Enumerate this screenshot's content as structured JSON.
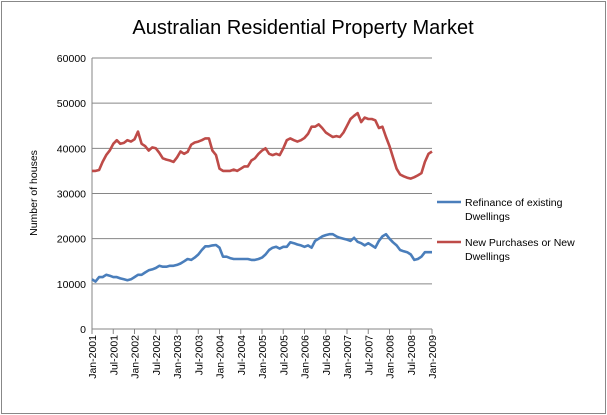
{
  "chart_data": {
    "type": "line",
    "title": "Australian Residential Property Market",
    "xlabel": "",
    "ylabel": "Number of houses",
    "ylim": [
      0,
      60000
    ],
    "yticks": [
      "0",
      "10000",
      "20000",
      "30000",
      "40000",
      "50000",
      "60000"
    ],
    "xtick_labels": [
      "Jan-2001",
      "Jul-2001",
      "Jan-2002",
      "Jul-2002",
      "Jan-2003",
      "Jul-2003",
      "Jan-2004",
      "Jul-2004",
      "Jan-2005",
      "Jul-2005",
      "Jan-2006",
      "Jul-2006",
      "Jan-2007",
      "Jul-2007",
      "Jan-2008",
      "Jul-2008",
      "Jan-2009"
    ],
    "x_start": "Jan-2001",
    "x_end": "Jan-2009",
    "x_frequency": "monthly",
    "grid": "horizontal",
    "legend_position": "right",
    "series": [
      {
        "name": "Refinance of existing Dwellings",
        "color": "#4a7ebb",
        "values": [
          11000,
          10500,
          11500,
          11500,
          12000,
          11800,
          11500,
          11500,
          11200,
          11000,
          10800,
          11000,
          11500,
          12000,
          12000,
          12500,
          13000,
          13200,
          13500,
          14000,
          13800,
          13800,
          14000,
          14000,
          14200,
          14500,
          15000,
          15500,
          15300,
          15800,
          16500,
          17500,
          18300,
          18300,
          18500,
          18600,
          18000,
          16000,
          16000,
          15700,
          15500,
          15500,
          15500,
          15500,
          15500,
          15300,
          15300,
          15500,
          15800,
          16500,
          17500,
          18000,
          18200,
          17800,
          18200,
          18200,
          19200,
          19000,
          18700,
          18500,
          18200,
          18500,
          18000,
          19500,
          20000,
          20500,
          20800,
          21000,
          21000,
          20500,
          20200,
          20000,
          19800,
          19500,
          20200,
          19300,
          19000,
          18500,
          19000,
          18500,
          18000,
          19500,
          20500,
          21000,
          20000,
          19200,
          18500,
          17500,
          17200,
          17000,
          16500,
          15300,
          15500,
          16000,
          17000,
          17000,
          17000
        ]
      },
      {
        "name": "New Purchases or New Dwellings",
        "color": "#be4b48",
        "values": [
          35000,
          35000,
          35200,
          37000,
          38500,
          39500,
          41000,
          41800,
          41000,
          41200,
          41800,
          41500,
          42000,
          43700,
          41000,
          40500,
          39500,
          40200,
          40000,
          39000,
          37800,
          37500,
          37300,
          37000,
          38000,
          39300,
          38800,
          39200,
          40800,
          41300,
          41500,
          41800,
          42200,
          42200,
          39500,
          38500,
          35500,
          35000,
          35000,
          35000,
          35300,
          35000,
          35500,
          36000,
          36000,
          37300,
          37800,
          38800,
          39500,
          40000,
          38800,
          38500,
          38800,
          38500,
          40000,
          41800,
          42200,
          41800,
          41500,
          41800,
          42300,
          43200,
          44800,
          44800,
          45300,
          44500,
          43500,
          43000,
          42500,
          42700,
          42500,
          43500,
          45000,
          46500,
          47200,
          47800,
          45800,
          46800,
          46500,
          46500,
          46200,
          44500,
          44800,
          42500,
          40500,
          38000,
          35500,
          34200,
          33800,
          33500,
          33300,
          33600,
          34000,
          34500,
          37000,
          38800,
          39300
        ]
      }
    ]
  }
}
